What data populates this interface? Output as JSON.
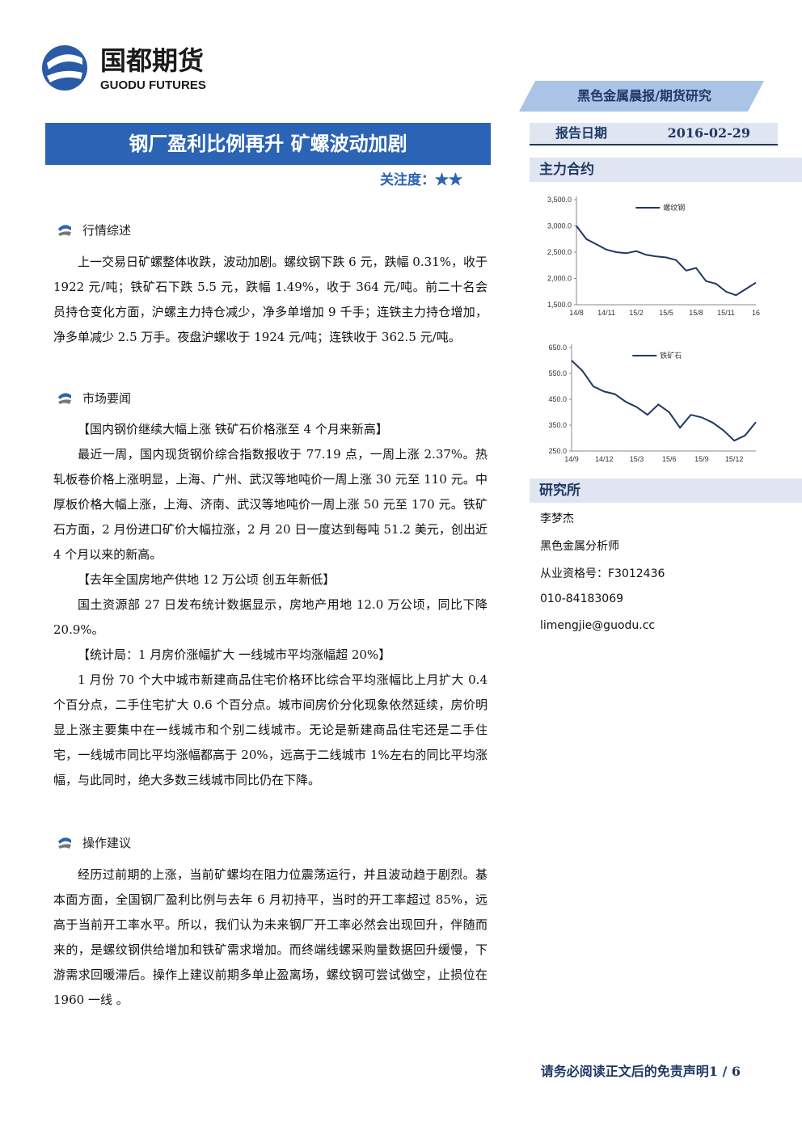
{
  "header": {
    "logo_cn": "国都期货",
    "logo_en": "GUODU FUTURES",
    "category": "黑色金属晨报/期货研究",
    "title": "钢厂盈利比例再升 矿螺波动加剧",
    "attention": "关注度：★★",
    "date_label": "报告日期",
    "date": "2016-02-29"
  },
  "sections": [
    {
      "heading": "行情综述",
      "paragraphs": [
        "上一交易日矿螺整体收跌，波动加剧。螺纹钢下跌 6 元，跌幅 0.31%，收于 1922 元/吨；铁矿石下跌 5.5 元，跌幅 1.49%，收于 364 元/吨。前二十名会员持仓变化方面，沪螺主力持仓减少，净多单增加 9 千手；连铁主力持仓增加，净多单减少 2.5 万手。夜盘沪螺收于 1924 元/吨；连铁收于 362.5 元/吨。"
      ]
    },
    {
      "heading": "市场要闻",
      "paragraphs": [
        "【国内钢价继续大幅上涨 铁矿石价格涨至 4 个月来新高】",
        "最近一周，国内现货钢价综合指数报收于 77.19 点，一周上涨 2.37%。热轧板卷价格上涨明显，上海、广州、武汉等地吨价一周上涨 30 元至 110 元。中厚板价格大幅上涨，上海、济南、武汉等地吨价一周上涨 50 元至 170 元。铁矿石方面，2 月份进口矿价大幅拉涨，2 月 20 日一度达到每吨 51.2 美元，创出近 4 个月以来的新高。",
        "【去年全国房地产供地 12 万公顷 创五年新低】",
        "国土资源部 27 日发布统计数据显示，房地产用地 12.0 万公顷，同比下降 20.9%。",
        "【统计局：1 月房价涨幅扩大 一线城市平均涨幅超 20%】",
        "1 月份 70 个大中城市新建商品住宅价格环比综合平均涨幅比上月扩大 0.4 个百分点，二手住宅扩大 0.6 个百分点。城市间房价分化现象依然延续，房价明显上涨主要集中在一线城市和个别二线城市。无论是新建商品住宅还是二手住宅，一线城市同比平均涨幅都高于 20%，远高于二线城市 1%左右的同比平均涨幅，与此同时，绝大多数三线城市同比仍在下降。"
      ]
    },
    {
      "heading": "操作建议",
      "paragraphs": [
        "经历过前期的上涨，当前矿螺均在阻力位震荡运行，并且波动趋于剧烈。基本面方面，全国钢厂盈利比例与去年 6 月初持平，当时的开工率超过 85%，远高于当前开工率水平。所以，我们认为未来钢厂开工率必然会出现回升，伴随而来的，是螺纹钢供给增加和铁矿需求增加。而终端线螺采购量数据回升缓慢，下游需求回暖滞后。操作上建议前期多单止盈离场，螺纹钢可尝试做空，止损位在 1960 一线 。"
      ]
    }
  ],
  "sidebar": {
    "contracts_heading": "主力合约",
    "institute_heading": "研究所",
    "contacts": [
      "李梦杰",
      "黑色金属分析师",
      "从业资格号：F3012436",
      "010-84183069",
      "limengjie@guodu.cc"
    ]
  },
  "footer": "请务必阅读正文后的免责声明1 / 6",
  "chart_data": [
    {
      "type": "line",
      "categories": [
        "14/8",
        null,
        null,
        "14/11",
        null,
        null,
        "15/2",
        null,
        null,
        "15/5",
        null,
        null,
        "15/8",
        null,
        null,
        "15/11",
        null,
        null,
        "16"
      ],
      "series": [
        {
          "name": "螺纹钢",
          "color": "#1f3864",
          "values": [
            3000,
            2750,
            2650,
            2550,
            2500,
            2480,
            2520,
            2450,
            2420,
            2400,
            2350,
            2150,
            2200,
            1950,
            1900,
            1750,
            1680,
            1800,
            1920
          ]
        }
      ],
      "ylim": [
        1500,
        3500
      ],
      "yticks": [
        {
          "value": 1500,
          "label": "1,500.0"
        },
        {
          "value": 2000,
          "label": "2,000.0"
        },
        {
          "value": 2500,
          "label": "2,500.0"
        },
        {
          "value": 3000,
          "label": "3,000.0"
        },
        {
          "value": 3500,
          "label": "3,500.0"
        }
      ]
    },
    {
      "type": "line",
      "categories": [
        "14/9",
        null,
        null,
        "14/12",
        null,
        null,
        "15/3",
        null,
        null,
        "15/6",
        null,
        null,
        "15/9",
        null,
        null,
        "15/12",
        null,
        null
      ],
      "series": [
        {
          "name": "铁矿石",
          "color": "#1f3864",
          "values": [
            600,
            560,
            500,
            480,
            470,
            440,
            420,
            390,
            430,
            400,
            340,
            390,
            380,
            360,
            330,
            290,
            310,
            362
          ]
        }
      ],
      "ylim": [
        250,
        650
      ],
      "yticks": [
        {
          "value": 250,
          "label": "250.0"
        },
        {
          "value": 350,
          "label": "350.0"
        },
        {
          "value": 450,
          "label": "450.0"
        },
        {
          "value": 550,
          "label": "550.0"
        },
        {
          "value": 650,
          "label": "650.0"
        }
      ]
    }
  ]
}
